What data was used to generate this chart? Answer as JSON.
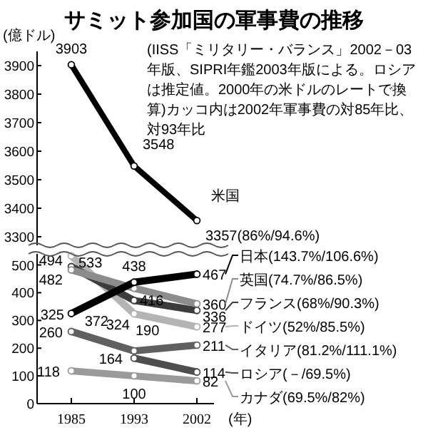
{
  "chart_data": [
    {
      "type": "line",
      "title": "サミット参加国の軍事費の推移",
      "ylabel": "(億ドル)",
      "annotations": [
        "(IISS「ミリタリー・バランス」2002－03年版、SIPRI年鑑2003年版による。ロシアは推定値。2000年の米ドルのレートで換算)カッコ内は2002年軍事費の対85年比、対93年比"
      ],
      "categories": [
        "1985",
        "1993",
        "2002"
      ],
      "ylim": [
        3270,
        3950
      ],
      "yticks": [
        3300,
        3400,
        3500,
        3600,
        3700,
        3800,
        3900
      ],
      "tick_labels": "y",
      "marker": "circle",
      "data_labels": true,
      "series": [
        {
          "name": "米国",
          "color": "#000000",
          "values": [
            3903,
            3548,
            3357
          ],
          "value_labels": [
            "3903",
            "3548",
            "3357(86%/94.6%)"
          ]
        }
      ]
    },
    {
      "type": "line",
      "xlabel": "(年)",
      "categories": [
        "1985",
        "1993",
        "2002"
      ],
      "ylim": [
        0,
        540
      ],
      "yticks": [
        0,
        100,
        200,
        300,
        400,
        500
      ],
      "marker": "circle",
      "data_labels": true,
      "legend": "right",
      "series": [
        {
          "name": "日本(143.7%/106.6%)",
          "color": "#000000",
          "values": [
            325,
            438,
            467
          ]
        },
        {
          "name": "英国(74.7%/86.5%)",
          "color": "#8c8c8c",
          "values": [
            482,
            416,
            360
          ]
        },
        {
          "name": "フランス(68%/90.3%)",
          "color": "#3c3c3c",
          "values": [
            494,
            372,
            336
          ]
        },
        {
          "name": "ドイツ(52%/85.5%)",
          "color": "#b4b4b4",
          "values": [
            533,
            324,
            277
          ]
        },
        {
          "name": "イタリア(81.2%/111.1%)",
          "color": "#606060",
          "values": [
            260,
            190,
            211
          ]
        },
        {
          "name": "ロシア(－/69.5%)",
          "color": "#4e4e4e",
          "values": [
            null,
            164,
            114
          ]
        },
        {
          "name": "カナダ(69.5%/82%)",
          "color": "#9a9a9a",
          "values": [
            118,
            100,
            82
          ]
        }
      ]
    }
  ]
}
